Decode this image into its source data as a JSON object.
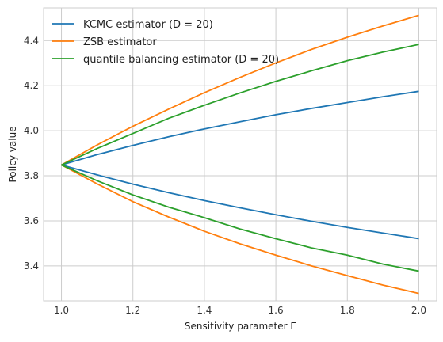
{
  "chart_data": {
    "type": "line",
    "xlabel": "Sensitivity parameter Γ",
    "ylabel": "Policy value",
    "xlim": [
      0.95,
      2.05
    ],
    "ylim": [
      3.245,
      4.545
    ],
    "xticks": [
      1.0,
      1.2,
      1.4,
      1.6,
      1.8,
      2.0
    ],
    "xtick_labels": [
      "1.0",
      "1.2",
      "1.4",
      "1.6",
      "1.8",
      "2.0"
    ],
    "yticks": [
      3.4,
      3.6,
      3.8,
      4.0,
      4.2,
      4.4
    ],
    "ytick_labels": [
      "3.4",
      "3.6",
      "3.8",
      "4.0",
      "4.2",
      "4.4"
    ],
    "grid": true,
    "legend_position": "top-left",
    "x": [
      1.0,
      1.1,
      1.2,
      1.3,
      1.4,
      1.5,
      1.6,
      1.7,
      1.8,
      1.9,
      2.0
    ],
    "series": [
      {
        "name": "KCMC estimator (D = 20)",
        "legend_label": "KCMC estimator (D = 20)",
        "color": "#1f77b4",
        "upper": [
          3.848,
          3.894,
          3.935,
          3.973,
          4.008,
          4.04,
          4.071,
          4.099,
          4.125,
          4.151,
          4.175
        ],
        "lower": [
          3.848,
          3.804,
          3.763,
          3.725,
          3.69,
          3.658,
          3.627,
          3.598,
          3.571,
          3.546,
          3.521
        ]
      },
      {
        "name": "ZSB estimator",
        "legend_label": "ZSB estimator",
        "color": "#ff7f0e",
        "upper": [
          3.848,
          3.937,
          4.02,
          4.096,
          4.169,
          4.237,
          4.301,
          4.361,
          4.415,
          4.465,
          4.512
        ],
        "lower": [
          3.848,
          3.764,
          3.685,
          3.617,
          3.554,
          3.498,
          3.448,
          3.4,
          3.357,
          3.315,
          3.278
        ]
      },
      {
        "name": "quantile balancing estimator (D = 20)",
        "legend_label": "quantile balancing estimator (D = 20)",
        "color": "#2ca02c",
        "upper": [
          3.848,
          3.921,
          3.988,
          4.055,
          4.113,
          4.168,
          4.219,
          4.266,
          4.311,
          4.349,
          4.383
        ],
        "lower": [
          3.848,
          3.778,
          3.715,
          3.661,
          3.614,
          3.564,
          3.521,
          3.48,
          3.448,
          3.408,
          3.377
        ]
      }
    ]
  }
}
